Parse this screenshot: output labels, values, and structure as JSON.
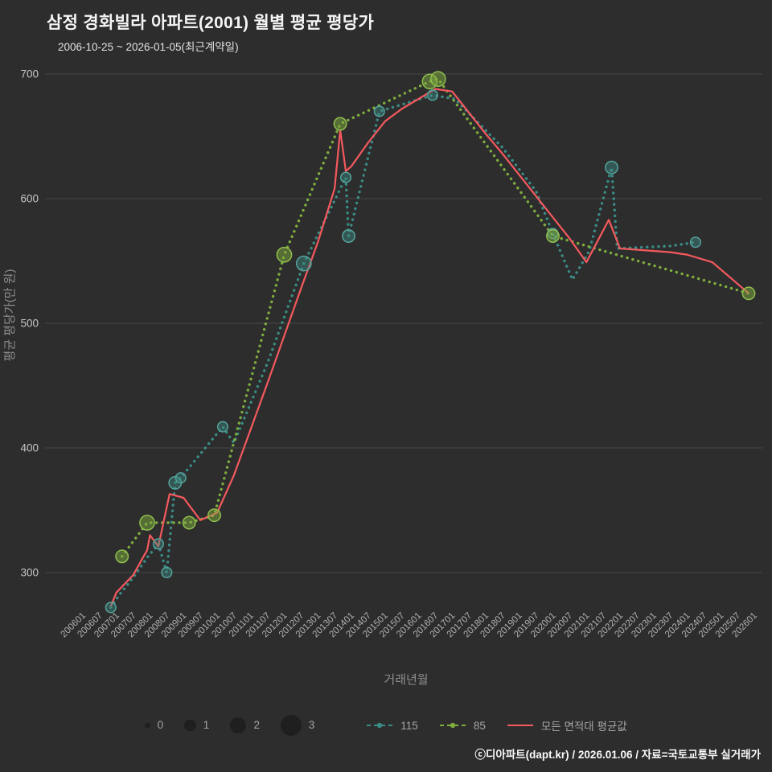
{
  "header": {
    "title": "삼정 경화빌라 아파트(2001) 월별 평균 평당가",
    "subtitle": "2006-10-25 ~ 2026-01-05(최근계약일)"
  },
  "chart_data": {
    "type": "line",
    "title": "삼정 경화빌라 아파트(2001) 월별 평균 평당가",
    "xlabel": "거래년월",
    "ylabel": "평균 평당가(만 원)",
    "grid": true,
    "legend_position": "bottom",
    "ylim": [
      240,
      710
    ],
    "y_ticks": [
      300,
      400,
      500,
      600,
      700
    ],
    "x_ticks": [
      "200601",
      "200607",
      "200701",
      "200707",
      "200801",
      "200807",
      "200901",
      "200907",
      "201001",
      "201007",
      "201101",
      "201107",
      "201201",
      "201207",
      "201301",
      "201307",
      "201401",
      "201407",
      "201501",
      "201507",
      "201601",
      "201607",
      "201701",
      "201707",
      "201801",
      "201807",
      "201901",
      "201907",
      "202001",
      "202007",
      "202101",
      "202107",
      "202201",
      "202207",
      "202301",
      "202307",
      "202401",
      "202407",
      "202501",
      "202507",
      "202601"
    ],
    "size_legend": [
      0,
      1,
      2,
      3
    ],
    "series": [
      {
        "key": "s115",
        "name": "115",
        "style": "dotted",
        "color": "#3a8c86",
        "marker_fill": "rgba(64,140,134,0.45)",
        "marker_stroke": "#54a39c",
        "points": [
          {
            "x": "200611",
            "y": 272,
            "s": 1
          },
          {
            "x": "200702",
            "y": 282
          },
          {
            "x": "200707",
            "y": 296
          },
          {
            "x": "200712",
            "y": 312
          },
          {
            "x": "200804",
            "y": 323,
            "s": 1
          },
          {
            "x": "200807",
            "y": 300,
            "s": 1
          },
          {
            "x": "200810",
            "y": 372,
            "s": 1.5
          },
          {
            "x": "200812",
            "y": 376,
            "s": 1
          },
          {
            "x": "201003",
            "y": 417,
            "s": 1
          },
          {
            "x": "201007",
            "y": 404
          },
          {
            "x": "201107",
            "y": 468
          },
          {
            "x": "201208",
            "y": 548,
            "s": 2
          },
          {
            "x": "201311",
            "y": 617,
            "s": 1
          },
          {
            "x": "201312",
            "y": 570,
            "s": 1.5
          },
          {
            "x": "201411",
            "y": 670,
            "s": 1
          },
          {
            "x": "201606",
            "y": 683,
            "s": 1
          },
          {
            "x": "201702",
            "y": 680
          },
          {
            "x": "201807",
            "y": 641
          },
          {
            "x": "201907",
            "y": 606
          },
          {
            "x": "202001",
            "y": 572,
            "s": 1
          },
          {
            "x": "202008",
            "y": 535
          },
          {
            "x": "202102",
            "y": 558
          },
          {
            "x": "202110",
            "y": 625,
            "s": 1.5
          },
          {
            "x": "202112",
            "y": 560
          },
          {
            "x": "202307",
            "y": 562
          },
          {
            "x": "202404",
            "y": 565,
            "s": 1
          }
        ]
      },
      {
        "key": "s85",
        "name": "85",
        "style": "dotted",
        "color": "#7fae3e",
        "marker_fill": "rgba(127,174,62,0.5)",
        "marker_stroke": "#8fbe4e",
        "points": [
          {
            "x": "200703",
            "y": 313,
            "s": 1.5
          },
          {
            "x": "200712",
            "y": 340,
            "s": 2
          },
          {
            "x": "200903",
            "y": 340,
            "s": 1.5
          },
          {
            "x": "200912",
            "y": 346,
            "s": 1.5
          },
          {
            "x": "201201",
            "y": 555,
            "s": 2
          },
          {
            "x": "201309",
            "y": 660,
            "s": 1.5
          },
          {
            "x": "201605",
            "y": 694,
            "s": 2
          },
          {
            "x": "201608",
            "y": 696,
            "s": 2
          },
          {
            "x": "202001",
            "y": 570,
            "s": 1.5
          },
          {
            "x": "202511",
            "y": 524,
            "s": 1.5
          }
        ]
      },
      {
        "key": "avg",
        "name": "모든 면적대 평균값",
        "style": "solid",
        "color": "#f4595e",
        "points": [
          {
            "x": "200611",
            "y": 273
          },
          {
            "x": "200701",
            "y": 284
          },
          {
            "x": "200707",
            "y": 298
          },
          {
            "x": "200712",
            "y": 318
          },
          {
            "x": "200801",
            "y": 330
          },
          {
            "x": "200804",
            "y": 321
          },
          {
            "x": "200808",
            "y": 363
          },
          {
            "x": "200901",
            "y": 360
          },
          {
            "x": "200907",
            "y": 342
          },
          {
            "x": "201001",
            "y": 348
          },
          {
            "x": "201007",
            "y": 378
          },
          {
            "x": "201101",
            "y": 415
          },
          {
            "x": "201107",
            "y": 452
          },
          {
            "x": "201201",
            "y": 490
          },
          {
            "x": "201207",
            "y": 528
          },
          {
            "x": "201301",
            "y": 565
          },
          {
            "x": "201307",
            "y": 608
          },
          {
            "x": "201309",
            "y": 655
          },
          {
            "x": "201311",
            "y": 622
          },
          {
            "x": "201401",
            "y": 626
          },
          {
            "x": "201407",
            "y": 645
          },
          {
            "x": "201501",
            "y": 662
          },
          {
            "x": "201507",
            "y": 672
          },
          {
            "x": "201601",
            "y": 680
          },
          {
            "x": "201607",
            "y": 688
          },
          {
            "x": "201701",
            "y": 686
          },
          {
            "x": "201707",
            "y": 669
          },
          {
            "x": "201801",
            "y": 652
          },
          {
            "x": "201807",
            "y": 636
          },
          {
            "x": "201901",
            "y": 619
          },
          {
            "x": "201907",
            "y": 602
          },
          {
            "x": "202001",
            "y": 585
          },
          {
            "x": "202007",
            "y": 568
          },
          {
            "x": "202101",
            "y": 549
          },
          {
            "x": "202109",
            "y": 583
          },
          {
            "x": "202201",
            "y": 560
          },
          {
            "x": "202307",
            "y": 557
          },
          {
            "x": "202401",
            "y": 555
          },
          {
            "x": "202410",
            "y": 549
          },
          {
            "x": "202511",
            "y": 524
          }
        ]
      }
    ]
  },
  "footer": {
    "credit": "ⓒ디아파트(dapt.kr) / 2026.01.06 / 자료=국토교통부 실거래가"
  }
}
